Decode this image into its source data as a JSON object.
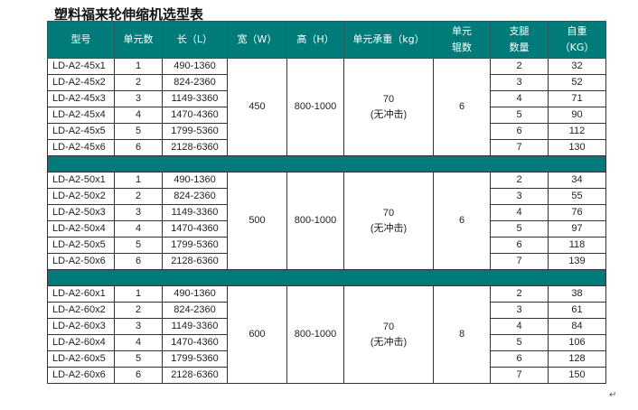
{
  "title": "塑料福来轮伸缩机选型表",
  "colors": {
    "header": "#007b7a"
  },
  "headers": [
    "型号",
    "单元数",
    "长（L）",
    "宽（W）",
    "高（H）",
    "单元承重（kg）",
    "单元\n辊数",
    "支腿\n数量",
    "自重\n（KG）"
  ],
  "groups": [
    {
      "width": "450",
      "height": "800-1000",
      "load": "70",
      "load_note": "(无冲击)",
      "rollers": "6",
      "rows": [
        [
          "LD-A2-45x1",
          "1",
          "490-1360",
          "2",
          "32"
        ],
        [
          "LD-A2-45x2",
          "2",
          "824-2360",
          "3",
          "52"
        ],
        [
          "LD-A2-45x3",
          "3",
          "1149-3360",
          "4",
          "71"
        ],
        [
          "LD-A2-45x4",
          "4",
          "1470-4360",
          "5",
          "90"
        ],
        [
          "LD-A2-45x5",
          "5",
          "1799-5360",
          "6",
          "112"
        ],
        [
          "LD-A2-45x6",
          "6",
          "2128-6360",
          "7",
          "130"
        ]
      ]
    },
    {
      "width": "500",
      "height": "800-1000",
      "load": "70",
      "load_note": "(无冲击)",
      "rollers": "6",
      "rows": [
        [
          "LD-A2-50x1",
          "1",
          "490-1360",
          "2",
          "34"
        ],
        [
          "LD-A2-50x2",
          "2",
          "824-2360",
          "3",
          "55"
        ],
        [
          "LD-A2-50x3",
          "3",
          "1149-3360",
          "4",
          "76"
        ],
        [
          "LD-A2-50x4",
          "4",
          "1470-4360",
          "5",
          "97"
        ],
        [
          "LD-A2-50x5",
          "5",
          "1799-5360",
          "6",
          "118"
        ],
        [
          "LD-A2-50x6",
          "6",
          "2128-6360",
          "7",
          "139"
        ]
      ]
    },
    {
      "width": "600",
      "height": "800-1000",
      "load": "70",
      "load_note": "(无冲击)",
      "rollers": "8",
      "rows": [
        [
          "LD-A2-60x1",
          "1",
          "490-1360",
          "2",
          "38"
        ],
        [
          "LD-A2-60x2",
          "2",
          "824-2360",
          "3",
          "61"
        ],
        [
          "LD-A2-60x3",
          "3",
          "1149-3360",
          "4",
          "84"
        ],
        [
          "LD-A2-60x4",
          "4",
          "1470-4360",
          "5",
          "106"
        ],
        [
          "LD-A2-60x5",
          "5",
          "1799-5360",
          "6",
          "128"
        ],
        [
          "LD-A2-60x6",
          "6",
          "2128-6360",
          "7",
          "150"
        ]
      ]
    }
  ],
  "return_mark": "↵"
}
